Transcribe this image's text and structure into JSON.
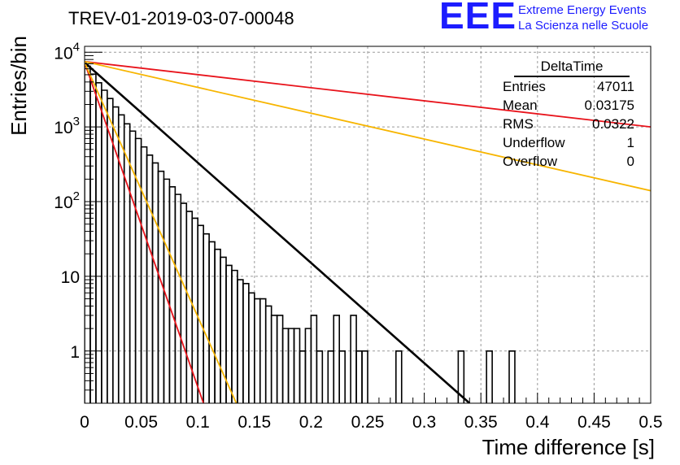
{
  "header": {
    "run_title": "TREV-01-2019-03-07-00048",
    "logo_mark": "EEE",
    "logo_line1": "Extreme Energy Events",
    "logo_line2": "La Scienza nelle Scuole"
  },
  "stats_box": {
    "title": "DeltaTime",
    "rows": [
      {
        "label": "Entries",
        "value": "47011"
      },
      {
        "label": "Mean",
        "value": "0.03175"
      },
      {
        "label": "RMS",
        "value": "0.0322"
      },
      {
        "label": "Underflow",
        "value": "1"
      },
      {
        "label": "Overflow",
        "value": "0"
      }
    ]
  },
  "colors": {
    "histogram": "#000000",
    "fit": "#000000",
    "red_line": "#e8131b",
    "orange_line": "#f7b500",
    "grid": "#9a9a9a"
  },
  "chart_data": {
    "type": "line",
    "title": "",
    "xlabel": "Time difference [s]",
    "ylabel": "Entries/bin",
    "xlim": [
      0,
      0.5
    ],
    "ylim": [
      0.2,
      12000
    ],
    "yscale": "log",
    "grid": true,
    "legend": "none",
    "x_ticks": [
      "0",
      "0.05",
      "0.1",
      "0.15",
      "0.2",
      "0.25",
      "0.3",
      "0.35",
      "0.4",
      "0.45",
      "0.5"
    ],
    "y_ticks": [
      {
        "value": 10000,
        "base": "10",
        "exp": "4"
      },
      {
        "value": 1000,
        "base": "10",
        "exp": "3"
      },
      {
        "value": 100,
        "base": "10",
        "exp": "2"
      },
      {
        "value": 10,
        "base": "10",
        "exp": ""
      },
      {
        "value": 1,
        "base": "1",
        "exp": ""
      }
    ],
    "histogram": {
      "bin_width": 0.005,
      "counts": [
        6500,
        5100,
        3900,
        3100,
        2400,
        1850,
        1450,
        1100,
        880,
        700,
        540,
        420,
        330,
        255,
        200,
        158,
        125,
        95,
        74,
        60,
        48,
        37,
        29,
        23,
        18,
        14,
        12,
        9,
        8,
        6,
        5,
        5,
        4,
        3,
        3,
        2,
        2,
        2,
        1,
        2,
        3,
        1,
        0,
        1,
        3,
        1,
        0,
        3,
        1,
        1,
        0,
        0,
        0,
        0,
        0,
        1,
        0,
        0,
        0,
        0,
        0,
        0,
        0,
        0,
        0,
        0,
        1,
        0,
        0,
        0,
        0,
        1,
        0,
        0,
        0,
        1,
        0,
        0,
        0,
        0
      ]
    },
    "series": [
      {
        "color": "black",
        "x": [
          0,
          0.34
        ],
        "y": [
          7300,
          0.19
        ]
      },
      {
        "color": "red",
        "x": [
          0,
          0.105
        ],
        "y": [
          7300,
          0.19
        ]
      },
      {
        "color": "orange",
        "x": [
          0,
          0.134
        ],
        "y": [
          7300,
          0.19
        ]
      },
      {
        "color": "red",
        "x": [
          0,
          0.5
        ],
        "y": [
          7500,
          1000
        ]
      },
      {
        "color": "orange",
        "x": [
          0,
          0.5
        ],
        "y": [
          7500,
          140
        ]
      }
    ]
  }
}
